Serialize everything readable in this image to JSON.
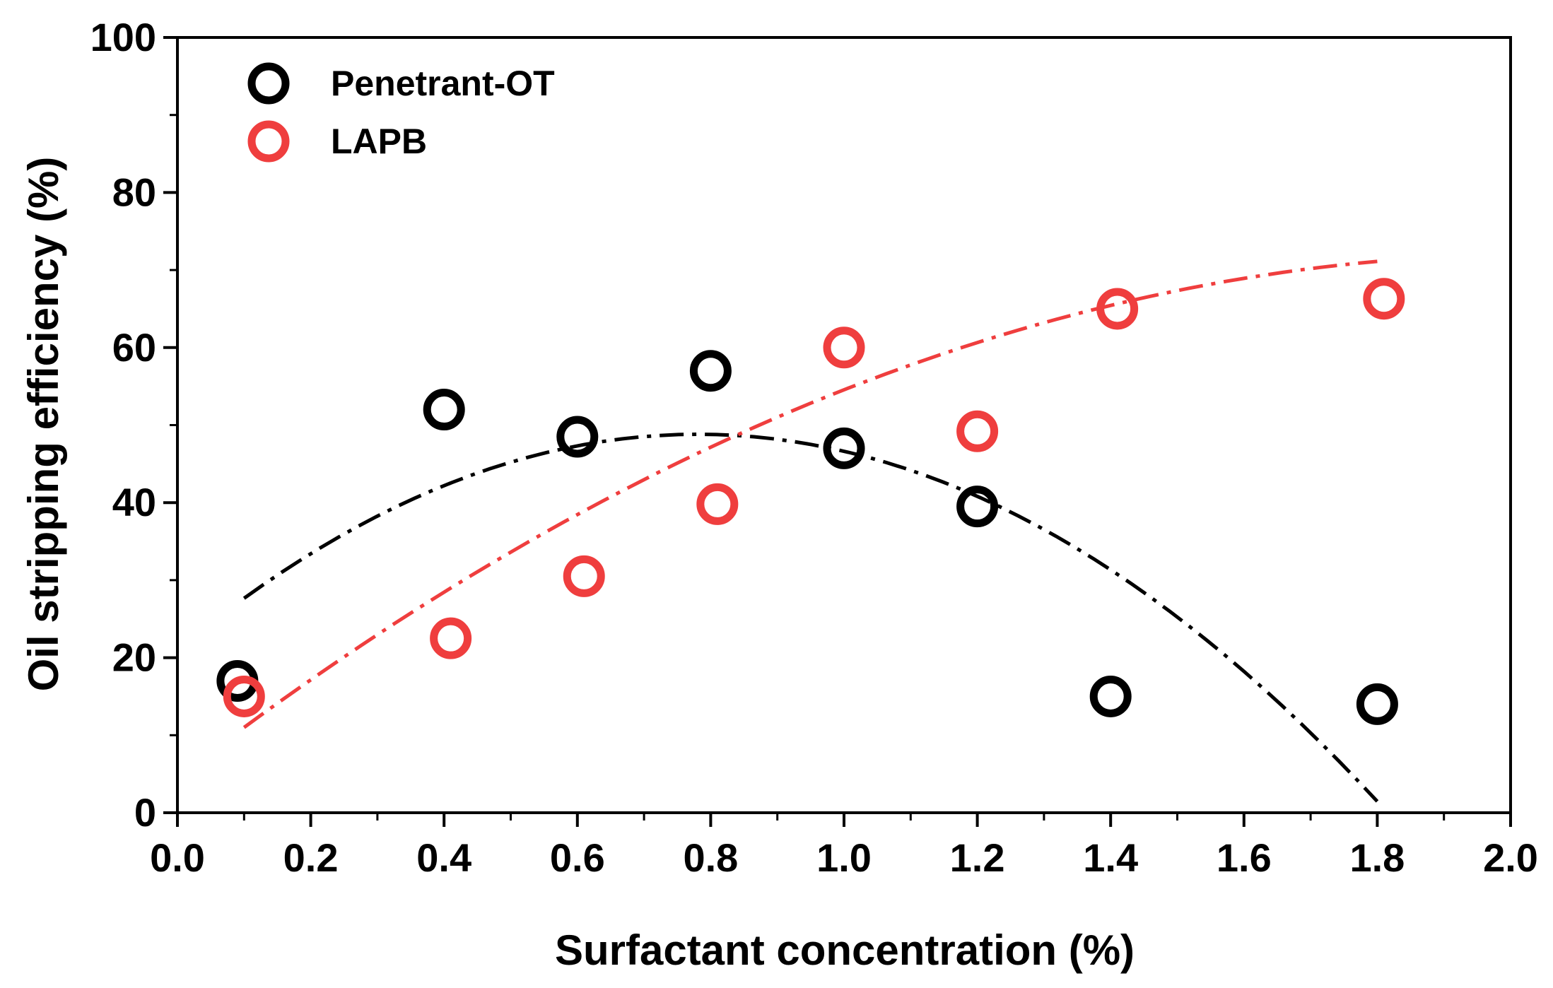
{
  "chart_data": {
    "type": "scatter",
    "title": "",
    "xlabel": "Surfactant concentration (%)",
    "ylabel": "Oil stripping efficiency (%)",
    "xlim": [
      0.0,
      2.0
    ],
    "ylim": [
      0,
      100
    ],
    "x_ticks": [
      0.0,
      0.2,
      0.4,
      0.6,
      0.8,
      1.0,
      1.2,
      1.4,
      1.6,
      1.8,
      2.0
    ],
    "x_tick_labels": [
      "0.0",
      "0.2",
      "0.4",
      "0.6",
      "0.8",
      "1.0",
      "1.2",
      "1.4",
      "1.6",
      "1.8",
      "2.0"
    ],
    "y_ticks": [
      0,
      20,
      40,
      60,
      80,
      100
    ],
    "y_tick_labels": [
      "0",
      "20",
      "40",
      "60",
      "80",
      "100"
    ],
    "grid": false,
    "legend_position": "top-left",
    "series": [
      {
        "name": "Penetrant-OT",
        "color": "#000000",
        "marker": "open-circle",
        "x": [
          0.09,
          0.4,
          0.6,
          0.8,
          1.0,
          1.2,
          1.4,
          1.8
        ],
        "y": [
          17,
          52,
          48.5,
          57,
          47,
          39.5,
          15,
          14
        ],
        "fit": {
          "style": "dash-dot",
          "x": [
            0.1,
            1.8
          ],
          "coefficients_quadratic": [
            20.99,
            71.25,
            -45.61
          ]
        }
      },
      {
        "name": "LAPB",
        "color": "#ef3e3e",
        "marker": "open-circle",
        "x": [
          0.1,
          0.41,
          0.61,
          0.81,
          1.0,
          1.2,
          1.41,
          1.81
        ],
        "y": [
          15,
          22.5,
          30.5,
          39.8,
          60,
          49.2,
          65,
          66.3
        ],
        "fit": {
          "style": "dash-dot",
          "x": [
            0.1,
            1.8
          ],
          "coefficients_quadratic": [
            4.54,
            66.29,
            -16.28
          ]
        }
      }
    ]
  }
}
